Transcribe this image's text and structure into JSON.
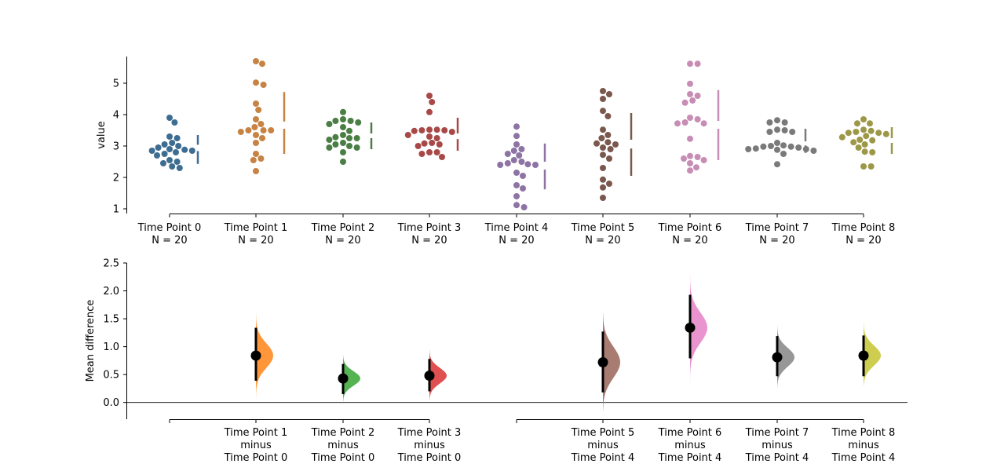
{
  "chart_data": [
    {
      "type": "scatter",
      "ylabel": "value",
      "ylim": [
        0.85,
        5.85
      ],
      "yticks": [
        1,
        2,
        3,
        4,
        5
      ],
      "categories": [
        {
          "line1": "Time Point 0",
          "line2": "N = 20"
        },
        {
          "line1": "Time Point 1",
          "line2": "N = 20"
        },
        {
          "line1": "Time Point 2",
          "line2": "N = 20"
        },
        {
          "line1": "Time Point 3",
          "line2": "N = 20"
        },
        {
          "line1": "Time Point 4",
          "line2": "N = 20"
        },
        {
          "line1": "Time Point 5",
          "line2": "N = 20"
        },
        {
          "line1": "Time Point 6",
          "line2": "N = 20"
        },
        {
          "line1": "Time Point 7",
          "line2": "N = 20"
        },
        {
          "line1": "Time Point 8",
          "line2": "N = 20"
        }
      ],
      "colors": [
        "#3e6d92",
        "#c78343",
        "#4a7e44",
        "#a84948",
        "#8d74a5",
        "#7a584e",
        "#c88db5",
        "#7a7a7a",
        "#9d9848"
      ],
      "series": [
        {
          "values": [
            3.9,
            3.75,
            3.3,
            3.25,
            3.1,
            3.05,
            3.0,
            2.95,
            2.9,
            2.88,
            2.85,
            2.85,
            2.8,
            2.75,
            2.7,
            2.55,
            2.5,
            2.45,
            2.35,
            2.3
          ]
        },
        {
          "values": [
            5.7,
            5.62,
            5.02,
            4.95,
            4.35,
            4.15,
            3.85,
            3.7,
            3.6,
            3.5,
            3.5,
            3.5,
            3.45,
            3.35,
            3.25,
            2.75,
            2.6,
            2.55,
            2.2,
            3.1
          ]
        },
        {
          "values": [
            4.08,
            3.85,
            3.8,
            3.8,
            3.75,
            3.7,
            3.6,
            3.48,
            3.35,
            3.28,
            3.25,
            3.25,
            3.2,
            3.1,
            3.05,
            3.0,
            2.95,
            2.95,
            2.8,
            2.5
          ]
        },
        {
          "values": [
            4.6,
            4.4,
            4.08,
            3.52,
            3.52,
            3.5,
            3.5,
            3.48,
            3.45,
            3.35,
            3.3,
            3.25,
            3.1,
            3.08,
            3.05,
            3.0,
            2.8,
            2.8,
            2.75,
            2.65
          ]
        },
        {
          "values": [
            3.62,
            3.32,
            3.05,
            2.9,
            2.85,
            2.75,
            2.7,
            2.55,
            2.5,
            2.45,
            2.42,
            2.4,
            2.4,
            2.15,
            2.05,
            1.75,
            1.65,
            1.4,
            1.12,
            1.05
          ]
        },
        {
          "values": [
            4.75,
            4.65,
            4.5,
            4.12,
            3.95,
            3.52,
            3.35,
            3.25,
            3.12,
            3.08,
            3.05,
            2.95,
            2.9,
            2.72,
            2.6,
            2.3,
            1.93,
            1.8,
            1.68,
            1.35
          ]
        },
        {
          "values": [
            5.62,
            5.62,
            4.98,
            4.65,
            4.6,
            4.45,
            4.38,
            3.9,
            3.85,
            3.75,
            3.72,
            3.72,
            3.23,
            2.68,
            2.65,
            2.6,
            2.55,
            2.45,
            2.32,
            2.22
          ]
        },
        {
          "values": [
            3.82,
            3.75,
            3.75,
            3.52,
            3.5,
            3.45,
            3.45,
            3.1,
            3.02,
            3.0,
            2.98,
            2.98,
            2.95,
            2.92,
            2.9,
            2.9,
            2.88,
            2.85,
            2.75,
            2.42
          ]
        },
        {
          "values": [
            3.85,
            3.72,
            3.72,
            3.52,
            3.48,
            3.45,
            3.42,
            3.42,
            3.38,
            3.32,
            3.28,
            3.2,
            3.18,
            3.12,
            3.05,
            2.95,
            2.82,
            2.8,
            2.35,
            2.35
          ]
        }
      ],
      "gap_bars": [
        {
          "lower": [
            2.43,
            2.84
          ],
          "upper": [
            3.04,
            3.35
          ]
        },
        {
          "lower": [
            2.75,
            3.55
          ],
          "upper": [
            3.78,
            4.72
          ]
        },
        {
          "lower": [
            2.9,
            3.25
          ],
          "upper": [
            3.4,
            3.75
          ]
        },
        {
          "lower": [
            2.85,
            3.22
          ],
          "upper": [
            3.4,
            3.9
          ]
        },
        {
          "lower": [
            1.62,
            2.25
          ],
          "upper": [
            2.5,
            3.08
          ]
        },
        {
          "lower": [
            2.05,
            2.92
          ],
          "upper": [
            3.2,
            4.05
          ]
        },
        {
          "lower": [
            2.55,
            3.55
          ],
          "upper": [
            3.8,
            4.78
          ]
        },
        {
          "lower": [
            2.78,
            3.02
          ],
          "upper": [
            3.15,
            3.55
          ]
        },
        {
          "lower": [
            2.75,
            3.1
          ],
          "upper": [
            3.25,
            3.6
          ]
        }
      ]
    },
    {
      "type": "scatter",
      "ylabel": "Mean difference",
      "ylim": [
        -0.3,
        2.5
      ],
      "yticks": [
        0.0,
        0.5,
        1.0,
        1.5,
        2.0,
        2.5
      ],
      "categories": [
        {
          "lines": [
            "Time Point 1",
            "minus",
            "Time Point 0"
          ]
        },
        {
          "lines": [
            "Time Point 2",
            "minus",
            "Time Point 0"
          ]
        },
        {
          "lines": [
            "Time Point 3",
            "minus",
            "Time Point 0"
          ]
        },
        {
          "lines": [
            "Time Point 5",
            "minus",
            "Time Point 4"
          ]
        },
        {
          "lines": [
            "Time Point 6",
            "minus",
            "Time Point 4"
          ]
        },
        {
          "lines": [
            "Time Point 7",
            "minus",
            "Time Point 4"
          ]
        },
        {
          "lines": [
            "Time Point 8",
            "minus",
            "Time Point 4"
          ]
        }
      ],
      "colors": [
        "#ff963a",
        "#56b352",
        "#e05050",
        "#a97c72",
        "#e994ce",
        "#979797",
        "#cdcd50"
      ],
      "mean_difference": [
        0.84,
        0.43,
        0.48,
        0.72,
        1.34,
        0.81,
        0.84
      ],
      "ci": [
        [
          0.39,
          1.34
        ],
        [
          0.15,
          0.69
        ],
        [
          0.2,
          0.78
        ],
        [
          0.18,
          1.27
        ],
        [
          0.79,
          1.93
        ],
        [
          0.47,
          1.19
        ],
        [
          0.47,
          1.2
        ]
      ],
      "distribution_range": [
        [
          0.05,
          1.65
        ],
        [
          -0.05,
          0.85
        ],
        [
          0.05,
          0.95
        ],
        [
          -0.15,
          1.6
        ],
        [
          0.25,
          2.45
        ],
        [
          0.25,
          1.4
        ],
        [
          0.3,
          1.5
        ]
      ],
      "distribution_sd": [
        0.22,
        0.13,
        0.14,
        0.28,
        0.27,
        0.17,
        0.18
      ]
    }
  ]
}
